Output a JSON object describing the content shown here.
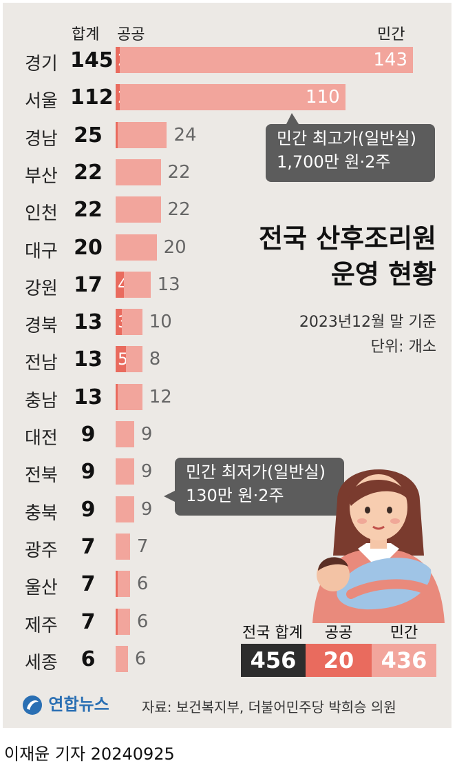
{
  "headers": {
    "total": "합계",
    "public": "공공",
    "private": "민간"
  },
  "title_lines": [
    "전국 산후조리원",
    "운영 현황"
  ],
  "date_note": "2023년12월 말 기준",
  "unit_note": "단위: 개소",
  "callouts": [
    {
      "lines": [
        "민간 최고가(일반실)",
        "1,700만 원·2주"
      ]
    },
    {
      "lines": [
        "민간 최저가(일반실)",
        "130만 원·2주"
      ]
    }
  ],
  "summary": {
    "labels": [
      "전국 합계",
      "공공",
      "민간"
    ],
    "values": [
      "456",
      "20",
      "436"
    ]
  },
  "source": "자료: 보건복지부, 더불어민주당 박희승 의원",
  "logo_text": "연합뉴스",
  "byline": "이재윤 기자 20240925",
  "colors": {
    "public": "#e96b5e",
    "private": "#f2a59c",
    "summary_total": "#2d2d2d",
    "callout": "#5c5c5c"
  },
  "chart_data": {
    "type": "bar",
    "orientation": "horizontal",
    "stacked": true,
    "categories": [
      "경기",
      "서울",
      "경남",
      "부산",
      "인천",
      "대구",
      "강원",
      "경북",
      "전남",
      "충남",
      "대전",
      "전북",
      "충북",
      "광주",
      "울산",
      "제주",
      "세종"
    ],
    "totals": [
      145,
      112,
      25,
      22,
      22,
      20,
      17,
      13,
      13,
      13,
      9,
      9,
      9,
      7,
      7,
      7,
      6
    ],
    "series": [
      {
        "name": "공공",
        "values": [
          2,
          2,
          1,
          0,
          0,
          0,
          4,
          3,
          5,
          1,
          0,
          0,
          0,
          0,
          1,
          1,
          0
        ]
      },
      {
        "name": "민간",
        "values": [
          143,
          110,
          24,
          22,
          22,
          20,
          13,
          10,
          8,
          12,
          9,
          9,
          9,
          7,
          6,
          6,
          6
        ]
      }
    ],
    "legend": "top"
  }
}
